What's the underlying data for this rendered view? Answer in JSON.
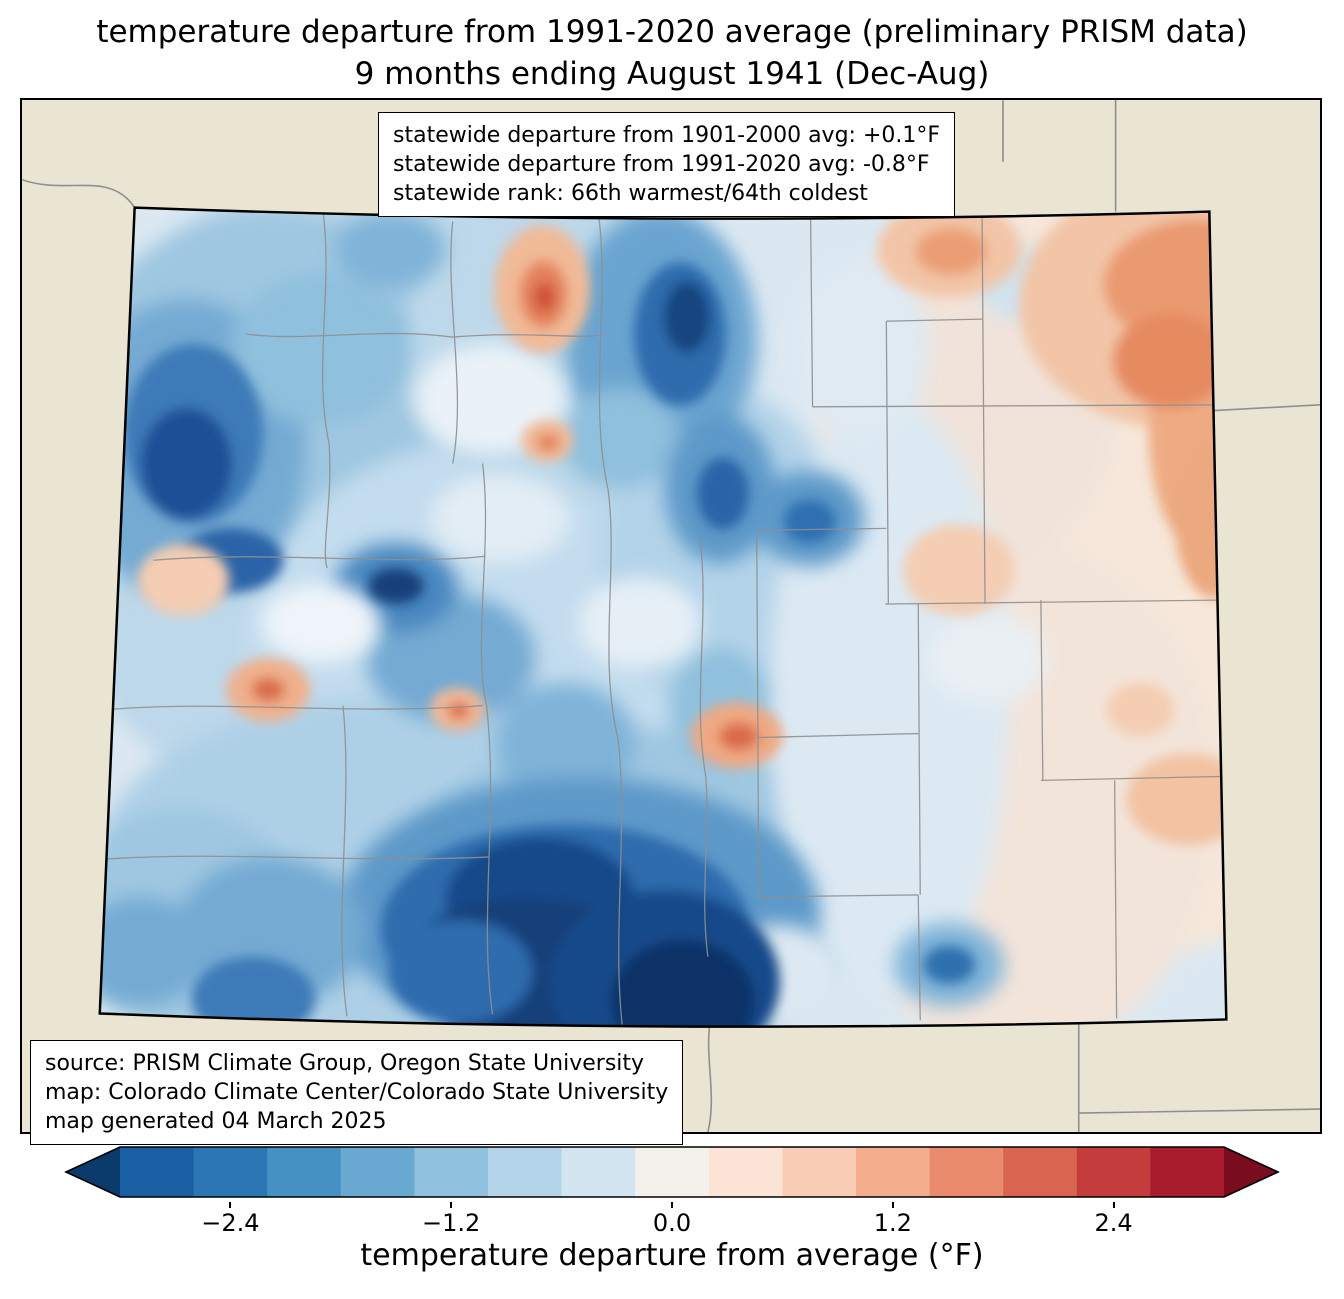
{
  "title": {
    "line1": "temperature departure from 1991-2020 average (preliminary PRISM data)",
    "line2": "9 months ending August 1941 (Dec-Aug)"
  },
  "stats_box": {
    "lines": [
      "statewide departure from 1901-2000 avg: +0.1°F",
      "statewide departure from 1991-2020 avg: -0.8°F",
      "statewide rank: 66th warmest/64th coldest"
    ]
  },
  "source_box": {
    "lines": [
      "source: PRISM Climate Group, Oregon State University",
      "map: Colorado Climate Center/Colorado State University",
      "map generated 04 March 2025"
    ]
  },
  "colorbar": {
    "label": "temperature departure from average (°F)",
    "range": [
      -3.0,
      3.0
    ],
    "ticks": [
      {
        "value": -2.4,
        "label": "−2.4"
      },
      {
        "value": -1.2,
        "label": "−1.2"
      },
      {
        "value": 0.0,
        "label": "0.0"
      },
      {
        "value": 1.2,
        "label": "1.2"
      },
      {
        "value": 2.4,
        "label": "2.4"
      }
    ],
    "under_color": "#0b3a6d",
    "over_color": "#7a0c20",
    "segment_colors": [
      "#1a5fa4",
      "#2d76b5",
      "#4691c4",
      "#69a8d1",
      "#8fc0dd",
      "#b4d5e9",
      "#d3e5f0",
      "#f4f1ec",
      "#fbe3d6",
      "#f9cdb5",
      "#f4ae8d",
      "#e98b6c",
      "#d96450",
      "#c43c3c",
      "#a81c2e"
    ]
  },
  "map": {
    "outside_color": "#e9e5d2",
    "state_border_color": "#000000",
    "county_line_color": "#8f8f8f",
    "base_field_color": "#dbe8f2"
  }
}
